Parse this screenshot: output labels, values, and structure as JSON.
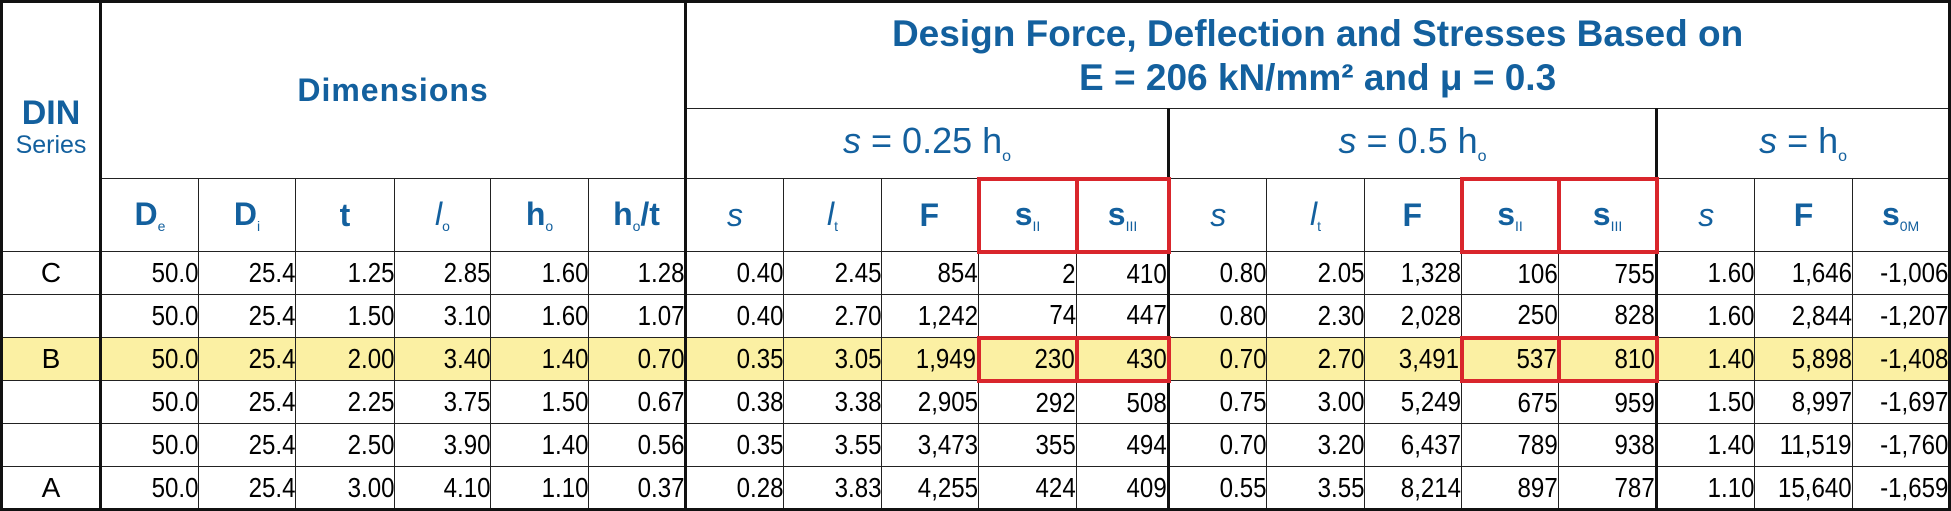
{
  "header": {
    "din_title": "DIN",
    "din_subtitle": "Series",
    "dimensions_title": "Dimensions",
    "design_title_line1": "Design Force, Deflection and Stresses Based on",
    "design_title_line2": "E = 206 kN/mm² and μ = 0.3",
    "group1": {
      "s": "s",
      "rest": " = 0.25 h",
      "sub": "o"
    },
    "group2": {
      "s": "s",
      "rest": " = 0.5 h",
      "sub": "o"
    },
    "group3": {
      "s": "s",
      "rest": " = h",
      "sub": "o"
    }
  },
  "columns": [
    {
      "main": "D",
      "sub": "e"
    },
    {
      "main": "D",
      "sub": "i"
    },
    {
      "main": "t",
      "sub": ""
    },
    {
      "main": "l",
      "sub": "o"
    },
    {
      "main": "h",
      "sub": "o"
    },
    {
      "main": "h",
      "sub": "o",
      "suffix": "/t"
    },
    {
      "main": "s",
      "sub": ""
    },
    {
      "main": "l",
      "sub": "t"
    },
    {
      "main": "F",
      "sub": ""
    },
    {
      "main": "s",
      "sub": "II"
    },
    {
      "main": "s",
      "sub": "III"
    },
    {
      "main": "s",
      "sub": ""
    },
    {
      "main": "l",
      "sub": "t"
    },
    {
      "main": "F",
      "sub": ""
    },
    {
      "main": "s",
      "sub": "II"
    },
    {
      "main": "s",
      "sub": "III"
    },
    {
      "main": "s",
      "sub": ""
    },
    {
      "main": "F",
      "sub": ""
    },
    {
      "main": "s",
      "sub": "0M"
    }
  ],
  "rows": [
    {
      "series": "C",
      "values": [
        "50.0",
        "25.4",
        "1.25",
        "2.85",
        "1.60",
        "1.28",
        "0.40",
        "2.45",
        "854",
        "2",
        "410",
        "0.80",
        "2.05",
        "1,328",
        "106",
        "755",
        "1.60",
        "1,646",
        "-1,006"
      ]
    },
    {
      "series": "",
      "values": [
        "50.0",
        "25.4",
        "1.50",
        "3.10",
        "1.60",
        "1.07",
        "0.40",
        "2.70",
        "1,242",
        "74",
        "447",
        "0.80",
        "2.30",
        "2,028",
        "250",
        "828",
        "1.60",
        "2,844",
        "-1,207"
      ]
    },
    {
      "series": "B",
      "values": [
        "50.0",
        "25.4",
        "2.00",
        "3.40",
        "1.40",
        "0.70",
        "0.35",
        "3.05",
        "1,949",
        "230",
        "430",
        "0.70",
        "2.70",
        "3,491",
        "537",
        "810",
        "1.40",
        "5,898",
        "-1,408"
      ]
    },
    {
      "series": "",
      "values": [
        "50.0",
        "25.4",
        "2.25",
        "3.75",
        "1.50",
        "0.67",
        "0.38",
        "3.38",
        "2,905",
        "292",
        "508",
        "0.75",
        "3.00",
        "5,249",
        "675",
        "959",
        "1.50",
        "8,997",
        "-1,697"
      ]
    },
    {
      "series": "",
      "values": [
        "50.0",
        "25.4",
        "2.50",
        "3.90",
        "1.40",
        "0.56",
        "0.35",
        "3.55",
        "3,473",
        "355",
        "494",
        "0.70",
        "3.20",
        "6,437",
        "789",
        "938",
        "1.40",
        "11,519",
        "-1,760"
      ]
    },
    {
      "series": "A",
      "values": [
        "50.0",
        "25.4",
        "3.00",
        "4.10",
        "1.10",
        "0.37",
        "0.28",
        "3.83",
        "4,255",
        "424",
        "409",
        "0.55",
        "3.55",
        "8,214",
        "897",
        "787",
        "1.10",
        "15,640",
        "-1,659"
      ]
    }
  ],
  "highlight_row_index": 2,
  "colors": {
    "header_text": "#13609e",
    "highlight_row": "#fbf0a3",
    "outline_red": "#d9262c"
  }
}
